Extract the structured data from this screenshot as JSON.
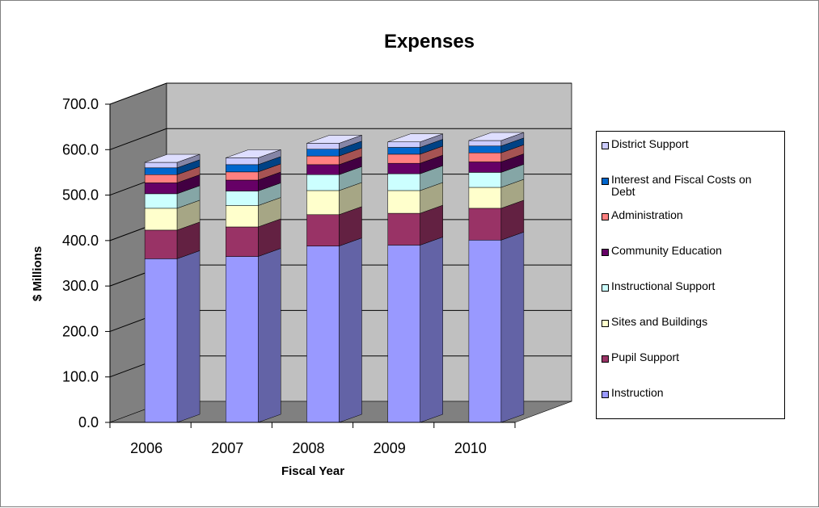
{
  "chart_data": {
    "type": "bar",
    "stacked": true,
    "three_d": true,
    "title": "Expenses",
    "xlabel": "Fiscal Year",
    "ylabel": "$ Millions",
    "ylim": [
      0,
      700
    ],
    "ytick_step": 100,
    "ytick_labels": [
      "0.0",
      "100.0",
      "200.0",
      "300.0",
      "400.0",
      "500.0",
      "600.0",
      "700.0"
    ],
    "categories": [
      "2006",
      "2007",
      "2008",
      "2009",
      "2010"
    ],
    "grid": true,
    "legend_position": "right",
    "series": [
      {
        "name": "Instruction",
        "color": "#9999ff",
        "values": [
          360,
          365,
          388,
          390,
          401
        ]
      },
      {
        "name": "Pupil Support",
        "color": "#993366",
        "values": [
          63,
          65,
          69,
          70,
          70
        ]
      },
      {
        "name": "Sites and Buildings",
        "color": "#ffffcc",
        "values": [
          48,
          47,
          53,
          50,
          46
        ]
      },
      {
        "name": "Instructional Support",
        "color": "#ccffff",
        "values": [
          32,
          32,
          35,
          37,
          33
        ]
      },
      {
        "name": "Community Education",
        "color": "#660066",
        "values": [
          24,
          24,
          22,
          23,
          23
        ]
      },
      {
        "name": "Administration",
        "color": "#ff8080",
        "values": [
          18,
          18,
          19,
          20,
          20
        ]
      },
      {
        "name": "Interest and Fiscal Costs on Debt",
        "color": "#0066cc",
        "values": [
          15,
          16,
          15,
          15,
          15
        ]
      },
      {
        "name": "District Support",
        "color": "#ccccff",
        "values": [
          12,
          15,
          13,
          12,
          12
        ]
      }
    ]
  }
}
